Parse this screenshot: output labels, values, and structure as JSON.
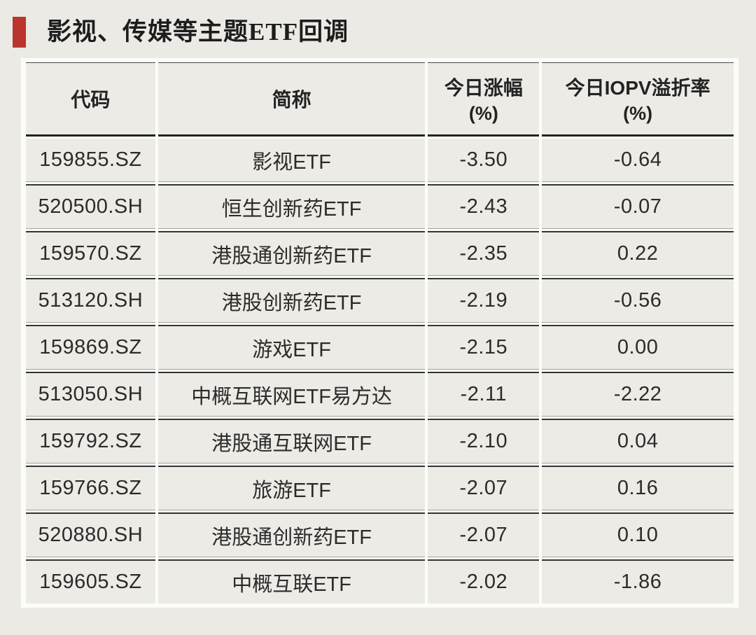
{
  "title": {
    "text": "影视、传媒等主题ETF回调"
  },
  "colors": {
    "accent_red": "#b9352e",
    "page_bg": "#eceae5",
    "cell_bg": "#edebe6",
    "separator_dark": "#333333"
  },
  "table": {
    "columns": [
      {
        "label": "代码",
        "sub": ""
      },
      {
        "label": "简称",
        "sub": ""
      },
      {
        "label": "今日涨幅",
        "sub": "(%)"
      },
      {
        "label": "今日IOPV溢折率",
        "sub": "(%)"
      }
    ],
    "rows": [
      {
        "code": "159855.SZ",
        "name": "影视ETF",
        "chg": "-3.50",
        "iopv": "-0.64"
      },
      {
        "code": "520500.SH",
        "name": "恒生创新药ETF",
        "chg": "-2.43",
        "iopv": "-0.07"
      },
      {
        "code": "159570.SZ",
        "name": "港股通创新药ETF",
        "chg": "-2.35",
        "iopv": "0.22"
      },
      {
        "code": "513120.SH",
        "name": "港股创新药ETF",
        "chg": "-2.19",
        "iopv": "-0.56"
      },
      {
        "code": "159869.SZ",
        "name": "游戏ETF",
        "chg": "-2.15",
        "iopv": "0.00"
      },
      {
        "code": "513050.SH",
        "name": "中概互联网ETF易方达",
        "chg": "-2.11",
        "iopv": "-2.22"
      },
      {
        "code": "159792.SZ",
        "name": "港股通互联网ETF",
        "chg": "-2.10",
        "iopv": "0.04"
      },
      {
        "code": "159766.SZ",
        "name": "旅游ETF",
        "chg": "-2.07",
        "iopv": "0.16"
      },
      {
        "code": "520880.SH",
        "name": "港股通创新药ETF",
        "chg": "-2.07",
        "iopv": "0.10"
      },
      {
        "code": "159605.SZ",
        "name": "中概互联ETF",
        "chg": "-2.02",
        "iopv": "-1.86"
      }
    ]
  }
}
